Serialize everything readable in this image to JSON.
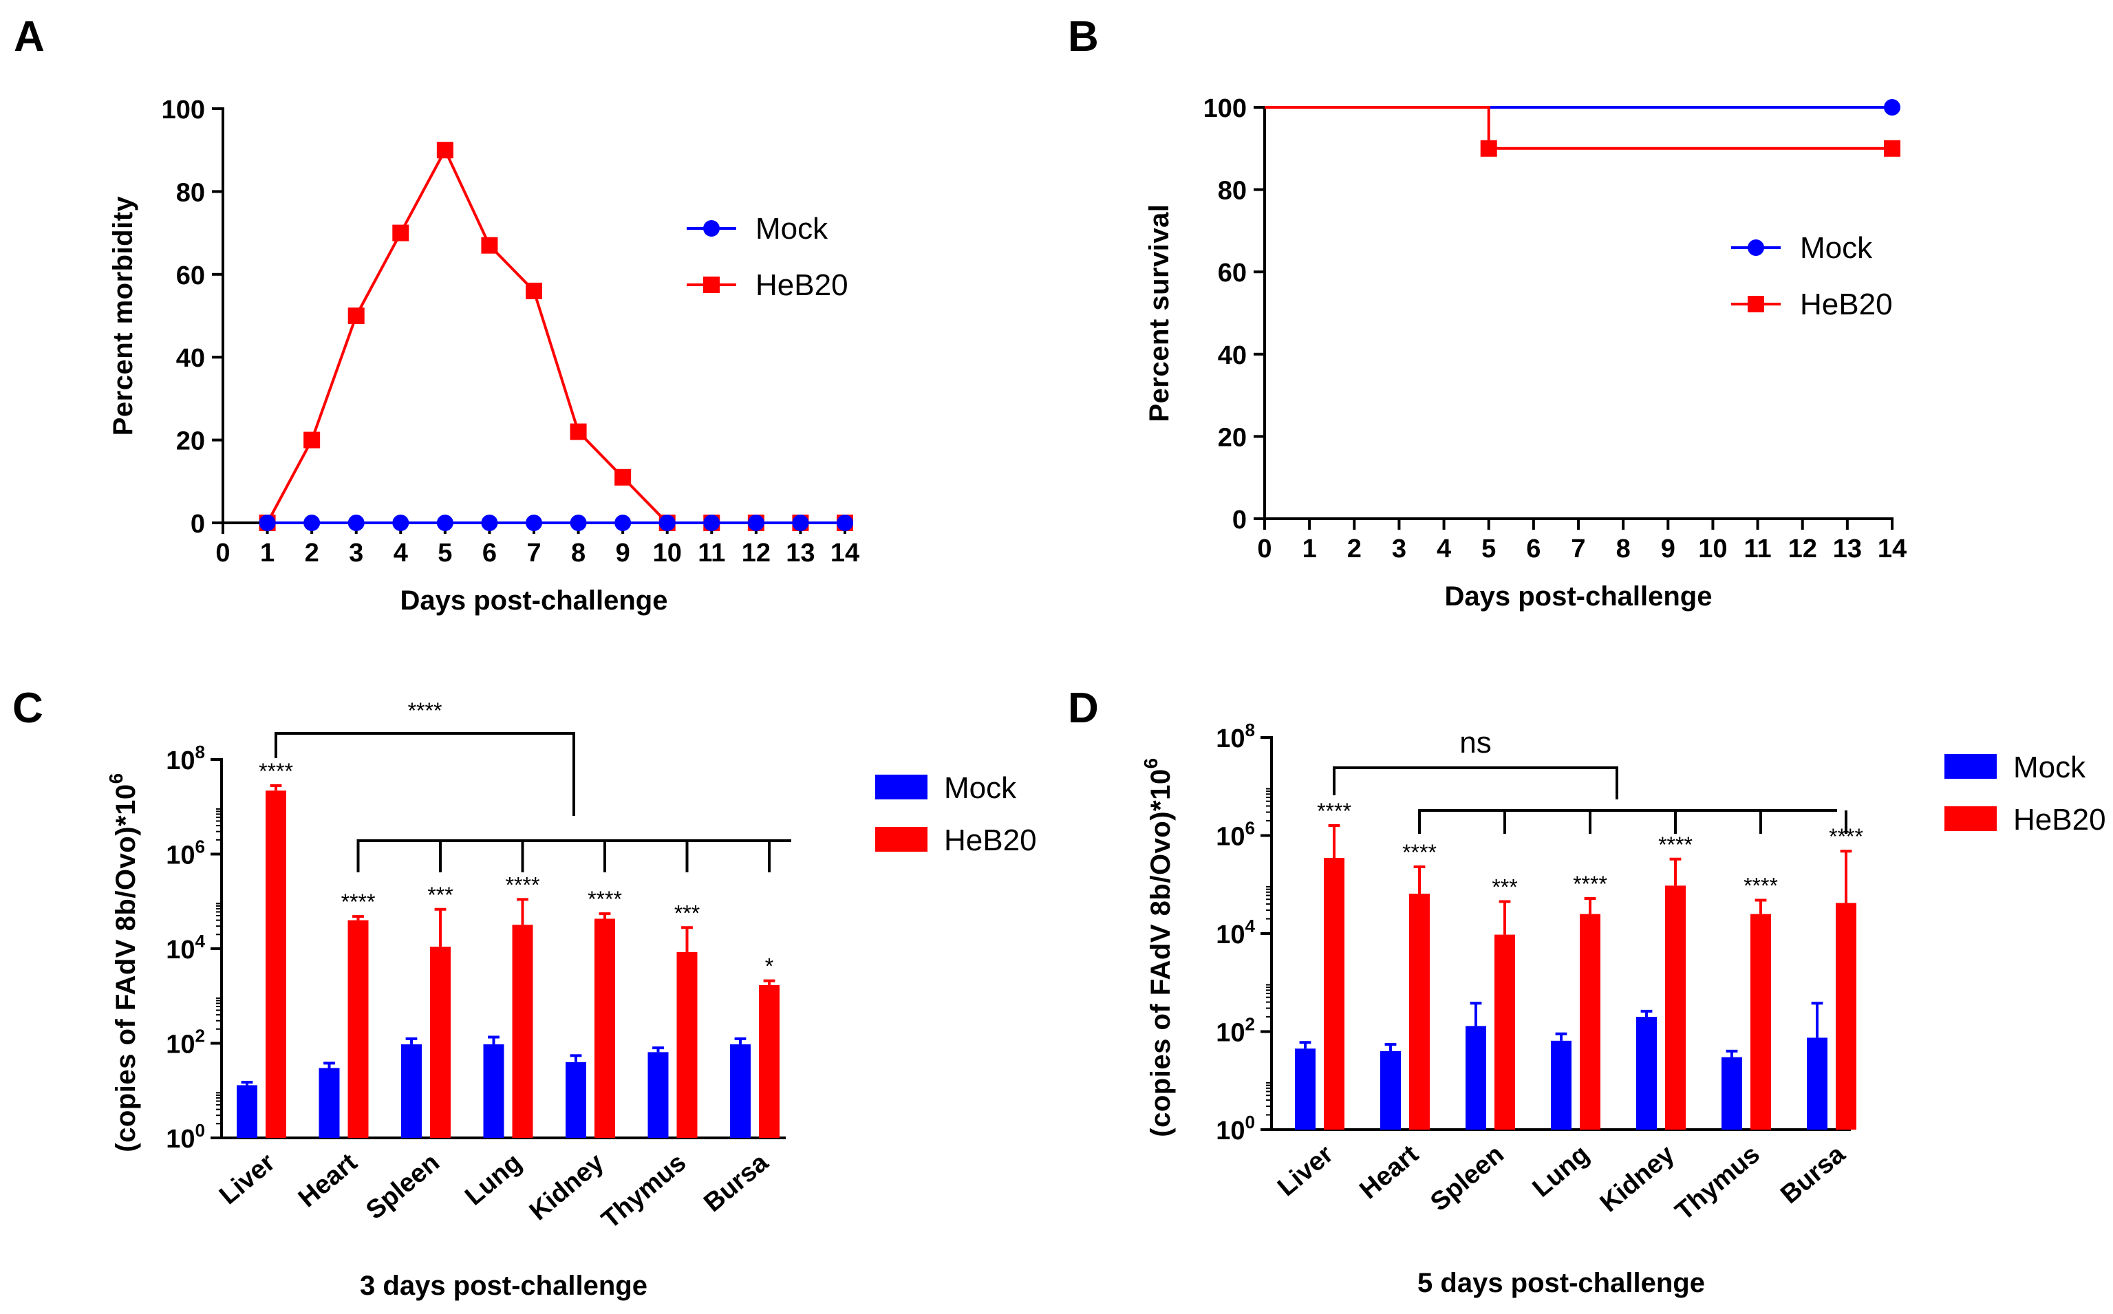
{
  "colors": {
    "mock": "#0000ff",
    "heb20": "#ff0000",
    "axis": "#000000"
  },
  "chart_data": [
    {
      "type": "line",
      "panel_label": "A",
      "xlabel": "Days post-challenge",
      "ylabel": "Percent morbidity",
      "xlim": [
        0,
        14
      ],
      "ylim": [
        0,
        100
      ],
      "xticks": [
        0,
        1,
        2,
        3,
        4,
        5,
        6,
        7,
        8,
        9,
        10,
        11,
        12,
        13,
        14
      ],
      "yticks": [
        0,
        20,
        40,
        60,
        80,
        100
      ],
      "legend_position": "right",
      "series": [
        {
          "name": "Mock",
          "marker": "circle",
          "x": [
            1,
            2,
            3,
            4,
            5,
            6,
            7,
            8,
            9,
            10,
            11,
            12,
            13,
            14
          ],
          "y": [
            0,
            0,
            0,
            0,
            0,
            0,
            0,
            0,
            0,
            0,
            0,
            0,
            0,
            0
          ]
        },
        {
          "name": "HeB20",
          "marker": "square",
          "x": [
            1,
            2,
            3,
            4,
            5,
            6,
            7,
            8,
            9,
            10,
            11,
            12,
            13,
            14
          ],
          "y": [
            0,
            20,
            50,
            70,
            90,
            67,
            56,
            22,
            11,
            0,
            0,
            0,
            0,
            0
          ]
        }
      ]
    },
    {
      "type": "line",
      "subtype": "survival",
      "panel_label": "B",
      "xlabel": "Days post-challenge",
      "ylabel": "Percent survival",
      "xlim": [
        0,
        14
      ],
      "ylim": [
        0,
        100
      ],
      "xticks": [
        0,
        1,
        2,
        3,
        4,
        5,
        6,
        7,
        8,
        9,
        10,
        11,
        12,
        13,
        14
      ],
      "yticks": [
        0,
        20,
        40,
        60,
        80,
        100
      ],
      "legend_position": "right",
      "series": [
        {
          "name": "Mock",
          "marker": "circle",
          "steps": [
            [
              0,
              100
            ],
            [
              14,
              100
            ]
          ],
          "markers": [
            [
              14,
              100
            ]
          ]
        },
        {
          "name": "HeB20",
          "marker": "square",
          "steps": [
            [
              0,
              100
            ],
            [
              5,
              100
            ],
            [
              5,
              90
            ],
            [
              14,
              90
            ]
          ],
          "markers": [
            [
              5,
              90
            ],
            [
              14,
              90
            ]
          ]
        }
      ]
    },
    {
      "type": "bar",
      "scale": "log",
      "panel_label": "C",
      "xlabel": "3 days post-challenge",
      "ylabel": "(copies of FAdV 8b/Ovo)*10",
      "ylabel_sup": "6",
      "ylim_exp": [
        0,
        8
      ],
      "ytick_exps": [
        0,
        2,
        4,
        6,
        8
      ],
      "ytick_base": "10",
      "legend_position": "right",
      "categories": [
        "Liver",
        "Heart",
        "Spleen",
        "Lung",
        "Kidney",
        "Thymus",
        "Bursa"
      ],
      "series": [
        {
          "name": "Mock",
          "values": [
            13,
            30,
            95,
            95,
            40,
            65,
            95
          ],
          "err_upper": [
            15,
            38,
            125,
            135,
            55,
            80,
            125
          ]
        },
        {
          "name": "HeB20",
          "values": [
            22000000,
            40000,
            11000,
            32000,
            43000,
            8500,
            1700
          ],
          "err_upper": [
            28000000,
            48000,
            68000,
            110000,
            55000,
            28000,
            2100
          ]
        }
      ],
      "significance": [
        "****",
        "****",
        "***",
        "****",
        "****",
        "***",
        "*"
      ],
      "comparison_label": "****"
    },
    {
      "type": "bar",
      "scale": "log",
      "panel_label": "D",
      "xlabel": "5 days post-challenge",
      "ylabel": "(copies of FAdV 8b/Ovo)*10",
      "ylabel_sup": "6",
      "ylim_exp": [
        0,
        8
      ],
      "ytick_exps": [
        0,
        2,
        4,
        6,
        8
      ],
      "ytick_base": "10",
      "legend_position": "right",
      "categories": [
        "Liver",
        "Heart",
        "Spleen",
        "Lung",
        "Kidney",
        "Thymus",
        "Bursa"
      ],
      "series": [
        {
          "name": "Mock",
          "values": [
            45,
            40,
            130,
            65,
            200,
            30,
            75
          ],
          "err_upper": [
            60,
            55,
            380,
            90,
            260,
            40,
            380
          ]
        },
        {
          "name": "HeB20",
          "values": [
            350000,
            65000,
            9500,
            25000,
            95000,
            25000,
            42000
          ],
          "err_upper": [
            1600000,
            230000,
            45000,
            52000,
            330000,
            48000,
            480000
          ]
        }
      ],
      "significance": [
        "****",
        "****",
        "***",
        "****",
        "****",
        "****",
        "****"
      ],
      "comparison_label": "ns"
    }
  ]
}
